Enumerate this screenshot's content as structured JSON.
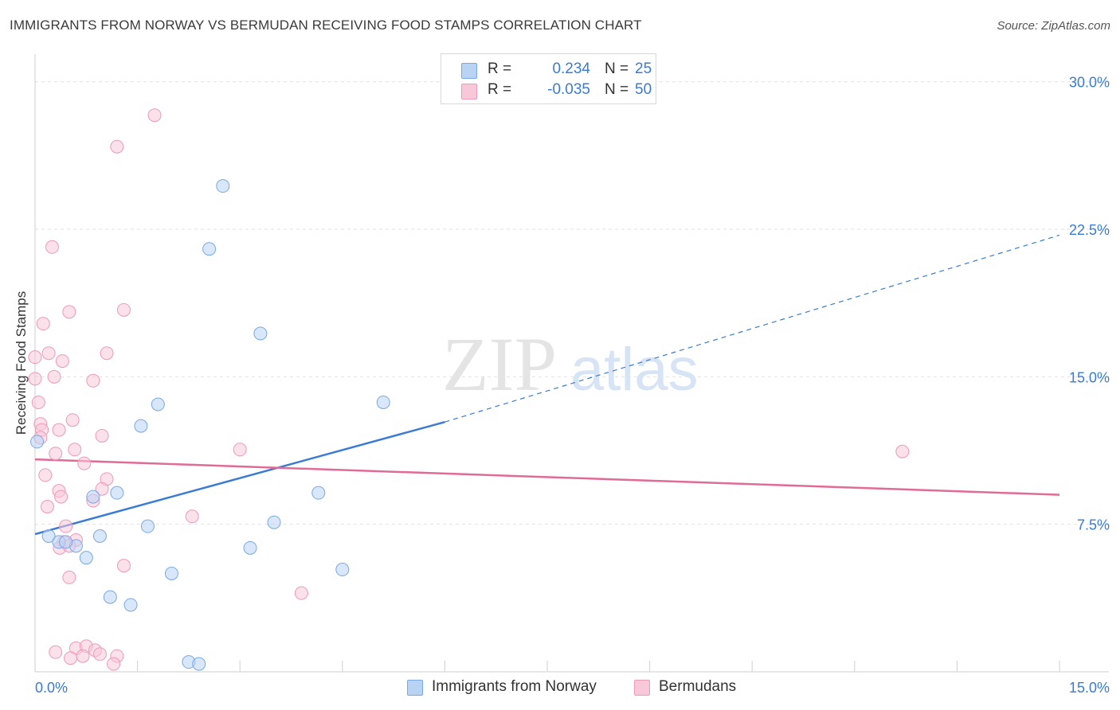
{
  "title": "IMMIGRANTS FROM NORWAY VS BERMUDAN RECEIVING FOOD STAMPS CORRELATION CHART",
  "source": "Source: ZipAtlas.com",
  "watermark": {
    "zip": "ZIP",
    "atlas": "atlas"
  },
  "legend": {
    "r_label": "R =",
    "n_label": "N =",
    "rows": [
      {
        "r": "0.234",
        "n": "25",
        "fill": "#b9d3f5",
        "stroke": "#7aa8e6"
      },
      {
        "r": "-0.035",
        "n": "50",
        "fill": "#f8c8d8",
        "stroke": "#ee9ab8"
      }
    ]
  },
  "bottom_legend": [
    {
      "label": "Immigrants from Norway",
      "fill": "#b9d3f5",
      "stroke": "#7aa8e6"
    },
    {
      "label": "Bermudans",
      "fill": "#f8c8d8",
      "stroke": "#ee9ab8"
    }
  ],
  "chart_data": {
    "type": "scatter",
    "xlabel": "",
    "ylabel": "Receiving Food Stamps",
    "xlim": [
      0,
      15
    ],
    "ylim": [
      0,
      31
    ],
    "x_tick_labels": [
      "0.0%",
      "15.0%"
    ],
    "y_ticks": [
      7.5,
      15.0,
      22.5,
      30.0
    ],
    "y_tick_labels": [
      "7.5%",
      "15.0%",
      "22.5%",
      "30.0%"
    ],
    "grid": true,
    "colors": {
      "norway": "#3a7bd5",
      "bermudans": "#e06b96",
      "axis_text": "#3a7bd5"
    },
    "series": [
      {
        "name": "Immigrants from Norway",
        "points": [
          [
            2.75,
            24.7
          ],
          [
            2.55,
            21.5
          ],
          [
            3.3,
            17.2
          ],
          [
            1.8,
            13.6
          ],
          [
            1.55,
            12.5
          ],
          [
            5.1,
            13.7
          ],
          [
            0.03,
            11.7
          ],
          [
            1.2,
            9.1
          ],
          [
            4.15,
            9.1
          ],
          [
            0.85,
            8.9
          ],
          [
            1.65,
            7.4
          ],
          [
            3.5,
            7.6
          ],
          [
            0.95,
            6.9
          ],
          [
            0.2,
            6.9
          ],
          [
            0.35,
            6.6
          ],
          [
            0.6,
            6.4
          ],
          [
            3.15,
            6.3
          ],
          [
            0.75,
            5.8
          ],
          [
            2.0,
            5.0
          ],
          [
            4.5,
            5.2
          ],
          [
            1.1,
            3.8
          ],
          [
            1.4,
            3.4
          ],
          [
            2.25,
            0.5
          ],
          [
            2.4,
            0.4
          ],
          [
            0.45,
            6.6
          ]
        ],
        "trend": {
          "x": [
            0.0,
            6.0
          ],
          "y": [
            7.0,
            12.7
          ],
          "dashed_x": [
            6.0,
            15.0
          ],
          "dashed_y": [
            12.7,
            22.2
          ]
        }
      },
      {
        "name": "Bermudans",
        "points": [
          [
            1.75,
            28.3
          ],
          [
            1.2,
            26.7
          ],
          [
            0.25,
            21.6
          ],
          [
            0.5,
            18.3
          ],
          [
            1.3,
            18.4
          ],
          [
            0.12,
            17.7
          ],
          [
            0.2,
            16.2
          ],
          [
            1.05,
            16.2
          ],
          [
            0.0,
            16.0
          ],
          [
            0.4,
            15.8
          ],
          [
            0.28,
            15.0
          ],
          [
            0.0,
            14.9
          ],
          [
            0.85,
            14.8
          ],
          [
            0.05,
            13.7
          ],
          [
            0.55,
            12.8
          ],
          [
            0.08,
            12.6
          ],
          [
            0.1,
            12.3
          ],
          [
            0.35,
            12.3
          ],
          [
            0.98,
            12.0
          ],
          [
            0.08,
            11.9
          ],
          [
            0.58,
            11.3
          ],
          [
            3.0,
            11.3
          ],
          [
            12.7,
            11.2
          ],
          [
            0.3,
            11.1
          ],
          [
            0.72,
            10.6
          ],
          [
            0.15,
            10.0
          ],
          [
            1.05,
            9.8
          ],
          [
            0.98,
            9.3
          ],
          [
            0.35,
            9.2
          ],
          [
            0.38,
            8.9
          ],
          [
            0.85,
            8.7
          ],
          [
            0.18,
            8.4
          ],
          [
            2.3,
            7.9
          ],
          [
            0.45,
            7.4
          ],
          [
            0.6,
            6.7
          ],
          [
            0.42,
            6.6
          ],
          [
            0.36,
            6.3
          ],
          [
            0.5,
            6.4
          ],
          [
            1.3,
            5.4
          ],
          [
            0.5,
            4.8
          ],
          [
            3.9,
            4.0
          ],
          [
            0.6,
            1.2
          ],
          [
            0.75,
            1.3
          ],
          [
            0.88,
            1.1
          ],
          [
            0.52,
            0.7
          ],
          [
            0.7,
            0.8
          ],
          [
            1.2,
            0.8
          ],
          [
            1.15,
            0.4
          ],
          [
            0.3,
            1.0
          ],
          [
            0.95,
            0.9
          ]
        ],
        "trend": {
          "x": [
            0.0,
            15.0
          ],
          "y": [
            10.8,
            9.0
          ]
        }
      }
    ]
  }
}
